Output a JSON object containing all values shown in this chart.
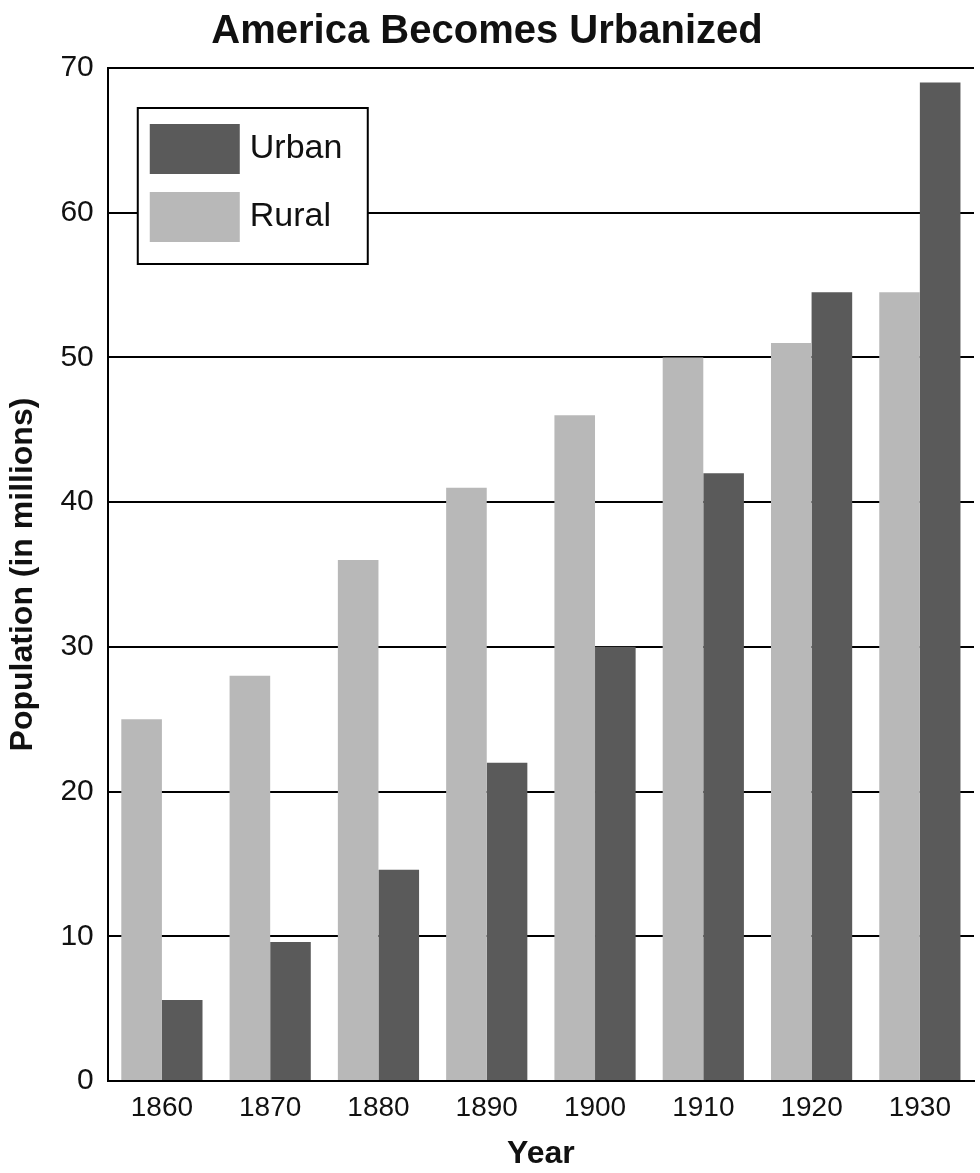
{
  "chart_data": {
    "type": "bar",
    "title": "America Becomes Urbanized",
    "xlabel": "Year",
    "ylabel": "Population (in millions)",
    "categories": [
      "1860",
      "1870",
      "1880",
      "1890",
      "1900",
      "1910",
      "1920",
      "1930"
    ],
    "series": [
      {
        "name": "Rural",
        "color": "#b8b8b8",
        "values": [
          25,
          28,
          36,
          41,
          46,
          50,
          51,
          54.5
        ]
      },
      {
        "name": "Urban",
        "color": "#5a5a5a",
        "values": [
          5.6,
          9.6,
          14.6,
          22,
          30,
          42,
          54.5,
          69
        ]
      }
    ],
    "ylim": [
      0,
      70
    ],
    "yticks": [
      0,
      10,
      20,
      30,
      40,
      50,
      60,
      70
    ],
    "grid": "y",
    "legend": "top left"
  }
}
